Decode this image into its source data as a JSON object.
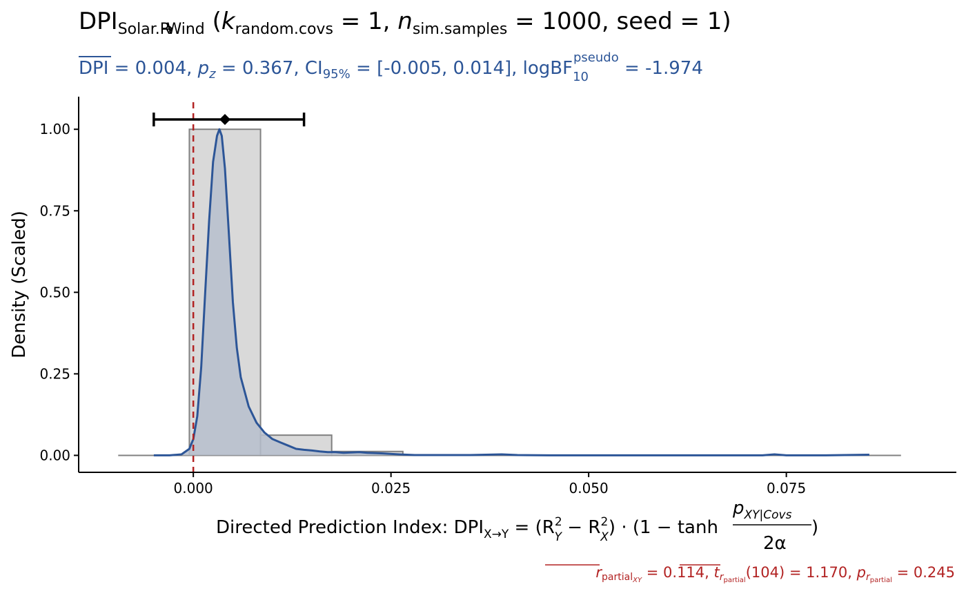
{
  "header": {
    "title": {
      "dpi": "DPI",
      "dpi_sub": "Solar.R",
      "arrow": "→",
      "wind": "Wind",
      "k": "k",
      "k_sub": "random.covs",
      "k_val": " = 1, ",
      "n": "n",
      "n_sub": "sim.samples",
      "n_val": " = 1000, seed = 1)"
    },
    "subtitle": {
      "dpi_bar": "DPI",
      "eq1": " = 0.004, ",
      "p": "p",
      "z": "z",
      "eq2": " = 0.367, CI",
      "ci_sub": "95%",
      "eq3": " = [-0.005, 0.014], logBF",
      "bf_sub": "10",
      "bf_sup": "pseudo",
      "eq4": " = -1.974"
    }
  },
  "axes": {
    "y_title": "Density (Scaled)",
    "x_title": {
      "prefix": "Directed Prediction Index: DPI",
      "sub": "X→Y",
      "eq": " = (R",
      "r1_sup": "2",
      "r1_sub": "Y",
      "minus": " − R",
      "r2_sup": "2",
      "r2_sub": "X",
      "dot": ") · (1 − tanh",
      "numer": "p",
      "numer_sub": "XY|Covs",
      "denom": "2α",
      "close": ")"
    }
  },
  "caption": {
    "r": "r",
    "r_sub": "partial",
    "r_subsub": "XY",
    "eq1": " = 0.114, ",
    "t": "t",
    "t_sub": "r",
    "t_subsub": "partial",
    "eq2": "(104) = 1.170, ",
    "p": "p",
    "p_sub": "r",
    "p_subsub": "partial",
    "eq3": " = 0.245"
  },
  "chart_data": {
    "type": "histogram+density",
    "xlim": [
      -0.0145,
      0.0965
    ],
    "ylim": [
      -0.052,
      1.1
    ],
    "x_ticks": [
      0.0,
      0.025,
      0.05,
      0.075
    ],
    "x_tick_labels": [
      "0.000",
      "0.025",
      "0.050",
      "0.075"
    ],
    "y_ticks": [
      0.0,
      0.25,
      0.5,
      0.75,
      1.0
    ],
    "y_tick_labels": [
      "0.00",
      "0.25",
      "0.50",
      "0.75",
      "1.00"
    ],
    "histogram": {
      "bins": [
        {
          "x0": -0.0095,
          "x1": -0.0005,
          "density": 0.0
        },
        {
          "x0": -0.0005,
          "x1": 0.0085,
          "density": 1.0
        },
        {
          "x0": 0.0085,
          "x1": 0.0175,
          "density": 0.062
        },
        {
          "x0": 0.0175,
          "x1": 0.0265,
          "density": 0.012
        },
        {
          "x0": 0.0265,
          "x1": 0.0355,
          "density": 0.0
        },
        {
          "x0": 0.0355,
          "x1": 0.0445,
          "density": 0.0
        },
        {
          "x0": 0.0445,
          "x1": 0.0535,
          "density": 0.0
        },
        {
          "x0": 0.0535,
          "x1": 0.0625,
          "density": 0.0
        },
        {
          "x0": 0.0625,
          "x1": 0.0715,
          "density": 0.0
        },
        {
          "x0": 0.0715,
          "x1": 0.0805,
          "density": 0.0
        },
        {
          "x0": 0.0805,
          "x1": 0.0895,
          "density": 0.0
        }
      ],
      "fill": "#d9d9d9",
      "stroke": "#808080"
    },
    "density_curve": {
      "x": [
        -0.005,
        -0.003,
        -0.0015,
        -0.0005,
        0.0,
        0.0005,
        0.001,
        0.0015,
        0.002,
        0.0025,
        0.003,
        0.0033,
        0.0036,
        0.004,
        0.0045,
        0.005,
        0.0055,
        0.006,
        0.007,
        0.008,
        0.009,
        0.01,
        0.011,
        0.012,
        0.013,
        0.014,
        0.015,
        0.016,
        0.017,
        0.018,
        0.019,
        0.02,
        0.021,
        0.022,
        0.023,
        0.024,
        0.026,
        0.028,
        0.03,
        0.035,
        0.039,
        0.041,
        0.045,
        0.05,
        0.06,
        0.07,
        0.072,
        0.0735,
        0.075,
        0.08,
        0.0855
      ],
      "y": [
        0.0,
        0.0,
        0.003,
        0.02,
        0.05,
        0.12,
        0.27,
        0.5,
        0.72,
        0.9,
        0.98,
        1.0,
        0.98,
        0.88,
        0.68,
        0.47,
        0.33,
        0.24,
        0.15,
        0.1,
        0.07,
        0.05,
        0.04,
        0.03,
        0.02,
        0.017,
        0.015,
        0.012,
        0.01,
        0.01,
        0.008,
        0.009,
        0.01,
        0.008,
        0.007,
        0.006,
        0.003,
        0.001,
        0.001,
        0.001,
        0.003,
        0.001,
        0.0,
        0.0,
        0.0,
        0.0,
        0.0,
        0.003,
        0.0,
        0.0,
        0.002
      ],
      "stroke": "#2c5597",
      "fill": "#b6becc"
    },
    "reference_line": {
      "x": 0.0,
      "color": "#b22222",
      "style": "dashed"
    },
    "interval": {
      "mean": 0.004,
      "lower": -0.005,
      "upper": 0.014,
      "y": 1.03
    },
    "colors": {
      "subtitle": "#2c5597",
      "caption": "#b22222"
    }
  }
}
